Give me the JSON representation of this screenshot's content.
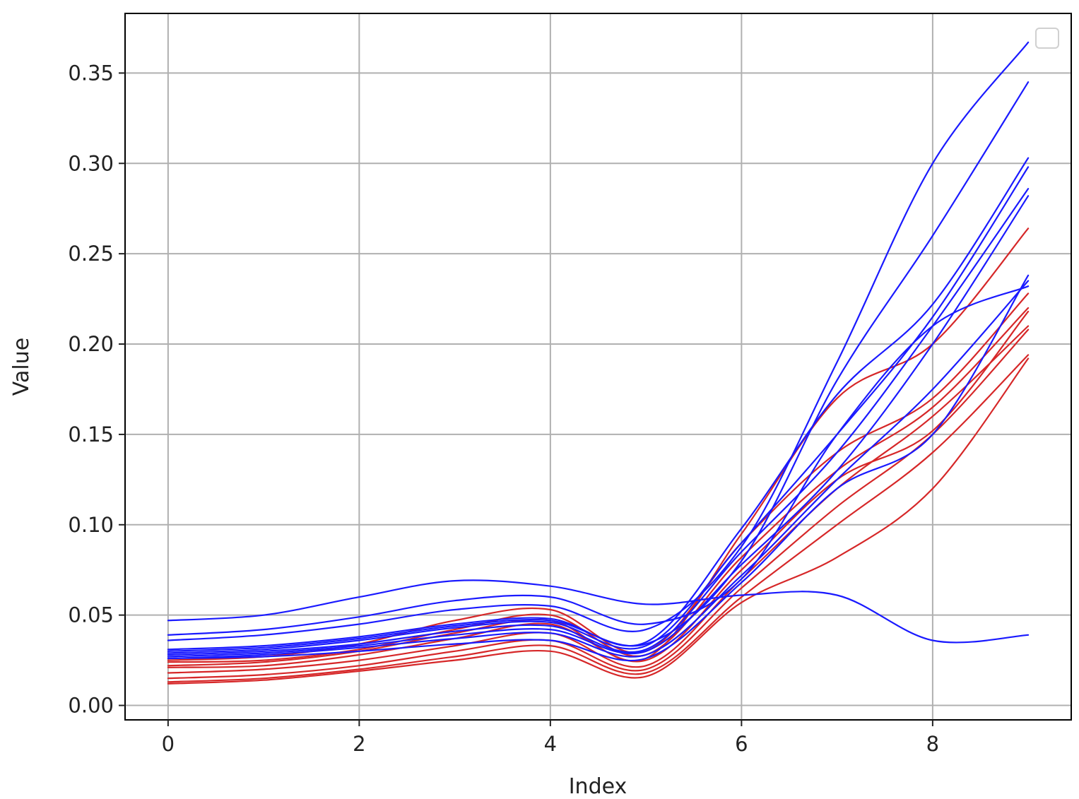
{
  "chart_data": {
    "type": "line",
    "title": "",
    "xlabel": "Index",
    "ylabel": "Value",
    "xlim": [
      -0.45,
      9.45
    ],
    "ylim": [
      -0.008,
      0.383
    ],
    "xticks": [
      0,
      2,
      4,
      6,
      8
    ],
    "xtick_labels": [
      "0",
      "2",
      "4",
      "6",
      "8"
    ],
    "yticks": [
      0.0,
      0.05,
      0.1,
      0.15,
      0.2,
      0.25,
      0.3,
      0.35
    ],
    "ytick_labels": [
      "0.00",
      "0.05",
      "0.10",
      "0.15",
      "0.20",
      "0.25",
      "0.30",
      "0.35"
    ],
    "grid": true,
    "legend": {
      "placement": "upper-right",
      "entries": []
    },
    "colors": {
      "red": "#d62728",
      "blue": "#1a1aff"
    },
    "x": [
      0,
      1,
      2,
      3,
      4,
      5,
      6,
      7,
      8,
      9
    ],
    "series": [
      {
        "color": "red",
        "values": [
          0.012,
          0.014,
          0.019,
          0.025,
          0.03,
          0.016,
          0.057,
          0.082,
          0.12,
          0.192
        ]
      },
      {
        "color": "red",
        "values": [
          0.013,
          0.015,
          0.02,
          0.027,
          0.033,
          0.018,
          0.06,
          0.1,
          0.14,
          0.194
        ]
      },
      {
        "color": "red",
        "values": [
          0.015,
          0.017,
          0.022,
          0.03,
          0.036,
          0.02,
          0.065,
          0.11,
          0.15,
          0.208
        ]
      },
      {
        "color": "red",
        "values": [
          0.018,
          0.02,
          0.025,
          0.033,
          0.04,
          0.022,
          0.07,
          0.12,
          0.16,
          0.21
        ]
      },
      {
        "color": "red",
        "values": [
          0.021,
          0.022,
          0.028,
          0.037,
          0.045,
          0.025,
          0.075,
          0.125,
          0.152,
          0.218
        ]
      },
      {
        "color": "red",
        "values": [
          0.024,
          0.025,
          0.031,
          0.042,
          0.05,
          0.028,
          0.082,
          0.13,
          0.165,
          0.22
        ]
      },
      {
        "color": "red",
        "values": [
          0.025,
          0.027,
          0.034,
          0.047,
          0.053,
          0.03,
          0.09,
          0.14,
          0.17,
          0.228
        ]
      },
      {
        "color": "red",
        "values": [
          0.022,
          0.024,
          0.03,
          0.04,
          0.047,
          0.026,
          0.095,
          0.17,
          0.2,
          0.264
        ]
      },
      {
        "color": "blue",
        "values": [
          0.026,
          0.027,
          0.03,
          0.034,
          0.036,
          0.026,
          0.068,
          0.12,
          0.15,
          0.238
        ]
      },
      {
        "color": "blue",
        "values": [
          0.026,
          0.028,
          0.032,
          0.037,
          0.04,
          0.028,
          0.072,
          0.125,
          0.175,
          0.235
        ]
      },
      {
        "color": "blue",
        "values": [
          0.027,
          0.029,
          0.033,
          0.039,
          0.042,
          0.03,
          0.078,
          0.13,
          0.2,
          0.282
        ]
      },
      {
        "color": "blue",
        "values": [
          0.028,
          0.03,
          0.034,
          0.041,
          0.044,
          0.031,
          0.085,
          0.14,
          0.21,
          0.286
        ]
      },
      {
        "color": "blue",
        "values": [
          0.029,
          0.031,
          0.036,
          0.043,
          0.046,
          0.033,
          0.09,
          0.15,
          0.215,
          0.298
        ]
      },
      {
        "color": "blue",
        "values": [
          0.031,
          0.033,
          0.038,
          0.045,
          0.048,
          0.035,
          0.098,
          0.172,
          0.222,
          0.303
        ]
      },
      {
        "color": "blue",
        "values": [
          0.03,
          0.032,
          0.037,
          0.044,
          0.047,
          0.034,
          0.08,
          0.18,
          0.26,
          0.345
        ]
      },
      {
        "color": "blue",
        "values": [
          0.036,
          0.039,
          0.045,
          0.053,
          0.055,
          0.042,
          0.088,
          0.19,
          0.3,
          0.367
        ]
      },
      {
        "color": "blue",
        "values": [
          0.039,
          0.042,
          0.049,
          0.058,
          0.06,
          0.045,
          0.07,
          0.15,
          0.21,
          0.232
        ]
      },
      {
        "color": "blue",
        "values": [
          0.047,
          0.05,
          0.06,
          0.069,
          0.066,
          0.056,
          0.061,
          0.061,
          0.036,
          0.039
        ]
      }
    ]
  }
}
